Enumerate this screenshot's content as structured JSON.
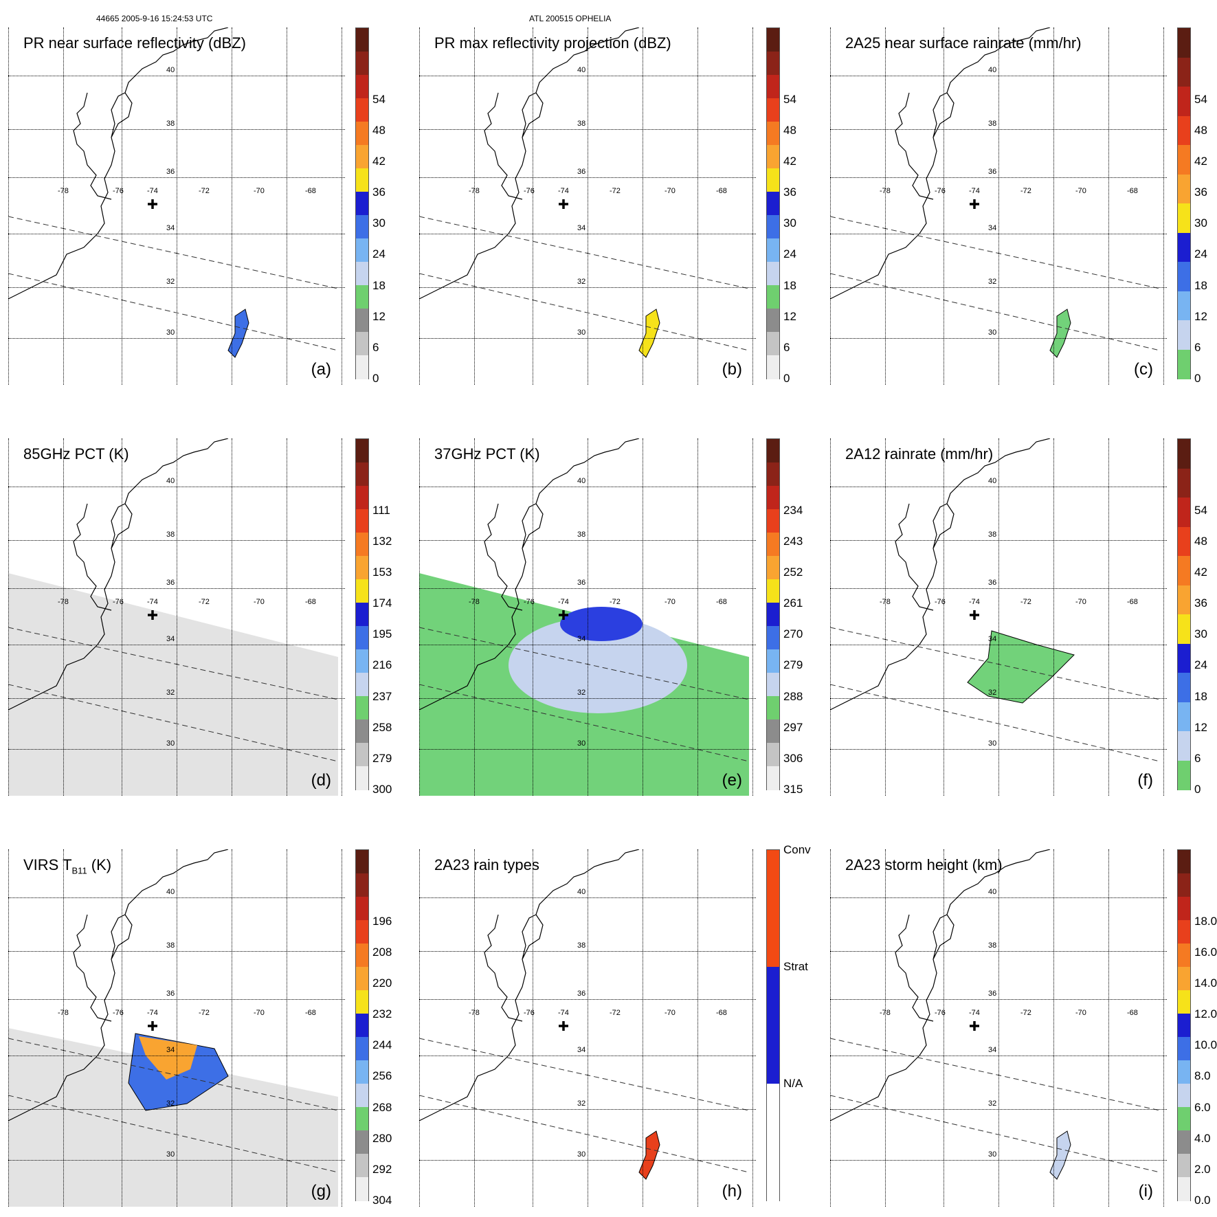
{
  "header": {
    "orbit_time": "44665 2005-9-16 15:24:53 UTC",
    "storm": "ATL 200515 OPHELIA"
  },
  "grid_labels": {
    "lat": [
      "40",
      "38",
      "36",
      "34",
      "32",
      "30"
    ],
    "lon": [
      "-78",
      "-76",
      "-74",
      "-72",
      "-70",
      "-68"
    ]
  },
  "panels": [
    {
      "id": "a",
      "title": "PR near surface reflectivity (dBZ)",
      "label": "(a)",
      "ticks": [
        "54",
        "48",
        "42",
        "36",
        "30",
        "24",
        "18",
        "12",
        "6",
        "0"
      ],
      "scheme": "dbz",
      "fill": "none",
      "colors": [
        "#5b1d12",
        "#8b2318",
        "#c0251b",
        "#e8401c",
        "#f57a22",
        "#f9a431",
        "#f6e21a",
        "#1b1ed0",
        "#3d6fe6",
        "#78b4f2",
        "#c6d4ee",
        "#6fcf6f",
        "#8c8c8c",
        "#c4c4c4",
        "#eeeeee"
      ]
    },
    {
      "id": "b",
      "title": "PR max reflectivity projection (dBZ)",
      "label": "(b)",
      "ticks": [
        "54",
        "48",
        "42",
        "36",
        "30",
        "24",
        "18",
        "12",
        "6",
        "0"
      ],
      "scheme": "dbz",
      "fill": "none"
    },
    {
      "id": "c",
      "title": "2A25 near surface rainrate (mm/hr)",
      "label": "(c)",
      "ticks": [
        "54",
        "48",
        "42",
        "36",
        "30",
        "24",
        "18",
        "12",
        "6",
        "0"
      ],
      "scheme": "rain",
      "fill": "none"
    },
    {
      "id": "d",
      "title": "85GHz PCT (K)",
      "label": "(d)",
      "ticks": [
        "111",
        "132",
        "153",
        "174",
        "195",
        "216",
        "237",
        "258",
        "279",
        "300"
      ],
      "scheme": "dbz",
      "fill": "gray"
    },
    {
      "id": "e",
      "title": "37GHz PCT (K)",
      "label": "(e)",
      "ticks": [
        "234",
        "243",
        "252",
        "261",
        "270",
        "279",
        "288",
        "297",
        "306",
        "315"
      ],
      "scheme": "dbz",
      "fill": "green"
    },
    {
      "id": "f",
      "title": "2A12 rainrate (mm/hr)",
      "label": "(f)",
      "ticks": [
        "54",
        "48",
        "42",
        "36",
        "30",
        "24",
        "18",
        "12",
        "6",
        "0"
      ],
      "scheme": "rain",
      "fill": "none"
    },
    {
      "id": "g",
      "title_main": "VIRS T",
      "title_sub": "B11",
      "title_end": " (K)",
      "label": "(g)",
      "ticks": [
        "196",
        "208",
        "220",
        "232",
        "244",
        "256",
        "268",
        "280",
        "292",
        "304"
      ],
      "scheme": "dbz",
      "fill": "gray2"
    },
    {
      "id": "h",
      "title": "2A23 rain types",
      "label": "(h)",
      "ticks": [
        "Conv",
        "Strat",
        "N/A"
      ],
      "scheme": "types",
      "fill": "none"
    },
    {
      "id": "i",
      "title": "2A23 storm height (km)",
      "label": "(i)",
      "ticks": [
        "18.0",
        "16.0",
        "14.0",
        "12.0",
        "10.0",
        "8.0",
        "6.0",
        "4.0",
        "2.0",
        "0.0"
      ],
      "scheme": "dbz",
      "fill": "none"
    }
  ]
}
